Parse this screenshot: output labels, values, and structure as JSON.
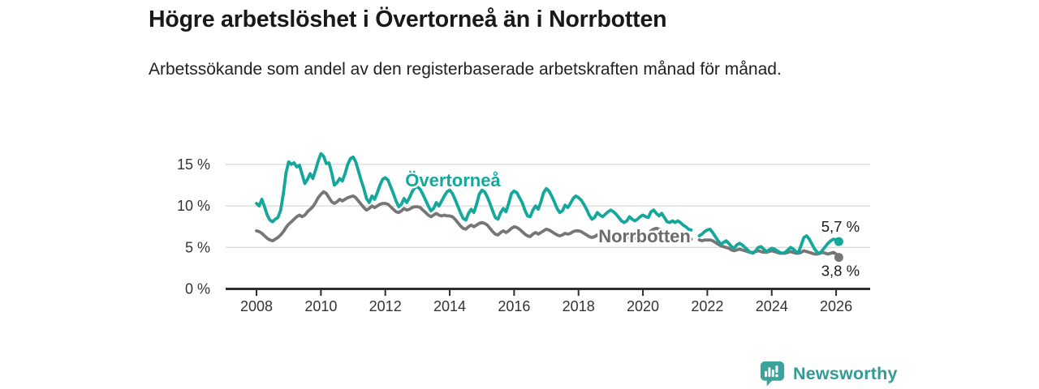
{
  "header": {
    "title": "Högre arbetslöshet i Övertorneå än i Norrbotten",
    "subtitle": "Arbetssökande som andel av den registerbaserade arbetskraften månad för månad."
  },
  "footer": {
    "brand": "Newsworthy"
  },
  "colors": {
    "background": "#ffffff",
    "accent_teal": "#14a79b",
    "line_gray": "#767676",
    "label_gray": "#6b6b6b",
    "grid": "#d9d9d9",
    "axis": "#2e2e2e",
    "tick_label": "#333333",
    "value_label": "#1a1a1a",
    "brand": "#339b95"
  },
  "chart_data": {
    "type": "line",
    "title": "Högre arbetslöshet i Övertorneå än i Norrbotten",
    "subtitle": "Arbetssökande som andel av den registerbaserade arbetskraften månad för månad.",
    "xlabel": "",
    "ylabel": "",
    "grid": true,
    "legend_position": "inline-labels",
    "x_unit": "monthly_decimal_year",
    "x_start": 2008.0,
    "x_end": 2026.083,
    "ylim": [
      0,
      17
    ],
    "xticks": [
      {
        "year": 2008,
        "label": "2008"
      },
      {
        "year": 2010,
        "label": "2010"
      },
      {
        "year": 2012,
        "label": "2012"
      },
      {
        "year": 2014,
        "label": "2014"
      },
      {
        "year": 2016,
        "label": "2016"
      },
      {
        "year": 2018,
        "label": "2018"
      },
      {
        "year": 2020,
        "label": "2020"
      },
      {
        "year": 2022,
        "label": "2022"
      },
      {
        "year": 2024,
        "label": "2024"
      },
      {
        "year": 2026,
        "label": "2026"
      }
    ],
    "yticks": [
      {
        "value": 0,
        "label": "0 %"
      },
      {
        "value": 5,
        "label": "5 %"
      },
      {
        "value": 10,
        "label": "10 %"
      },
      {
        "value": 15,
        "label": "15 %"
      }
    ],
    "series": [
      {
        "name": "Övertorneå",
        "slug": "overtornea",
        "color": "#14a79b",
        "label_color": "#14a79b",
        "label_anchor": {
          "x": 2014.1,
          "y": 13.15
        },
        "end_label": "5,7 %",
        "end_label_placement": "above",
        "end_value": 5.7,
        "values": [
          10.3,
          10.0,
          10.8,
          9.9,
          8.9,
          8.3,
          8.1,
          8.4,
          8.6,
          9.5,
          11.5,
          14.0,
          15.3,
          15.0,
          15.2,
          14.7,
          14.9,
          13.8,
          12.7,
          13.2,
          13.9,
          13.3,
          14.3,
          15.4,
          16.3,
          16.0,
          15.1,
          15.2,
          14.0,
          12.5,
          12.8,
          13.3,
          13.0,
          13.9,
          15.0,
          15.7,
          15.9,
          15.3,
          14.2,
          13.1,
          12.1,
          10.9,
          10.4,
          11.2,
          10.8,
          11.6,
          12.5,
          13.2,
          13.4,
          13.1,
          12.3,
          11.5,
          10.6,
          9.9,
          10.2,
          10.9,
          10.4,
          11.0,
          11.7,
          12.2,
          12.3,
          12.0,
          11.4,
          10.7,
          10.0,
          9.4,
          9.7,
          10.4,
          10.0,
          10.6,
          11.2,
          11.7,
          11.9,
          11.5,
          10.8,
          10.0,
          9.2,
          8.5,
          8.3,
          9.1,
          9.6,
          9.2,
          10.2,
          11.4,
          11.9,
          11.7,
          11.1,
          10.3,
          9.4,
          8.6,
          8.4,
          9.2,
          9.7,
          9.3,
          10.3,
          11.5,
          11.8,
          11.6,
          11.0,
          10.4,
          9.5,
          8.8,
          8.7,
          9.5,
          10.0,
          9.6,
          10.5,
          11.6,
          12.1,
          11.8,
          11.2,
          10.5,
          9.7,
          9.2,
          9.4,
          10.1,
          9.8,
          10.3,
          10.9,
          11.2,
          11.0,
          10.7,
          10.2,
          9.6,
          8.9,
          8.4,
          8.6,
          9.2,
          8.9,
          8.7,
          9.0,
          9.3,
          9.5,
          9.3,
          9.0,
          8.6,
          8.2,
          8.0,
          8.2,
          8.7,
          8.4,
          8.2,
          8.4,
          8.7,
          8.9,
          8.7,
          8.6,
          9.3,
          9.5,
          9.1,
          8.8,
          9.1,
          8.6,
          8.1,
          8.0,
          8.2,
          8.0,
          8.2,
          8.0,
          7.7,
          7.5,
          7.2,
          7.1,
          null,
          null,
          6.4,
          6.6,
          6.9,
          7.1,
          7.2,
          6.8,
          6.3,
          5.8,
          5.4,
          5.6,
          5.8,
          5.5,
          5.1,
          4.9,
          5.3,
          5.5,
          5.3,
          5.0,
          4.7,
          4.4,
          4.3,
          4.6,
          5.0,
          5.1,
          4.8,
          4.5,
          4.7,
          4.9,
          4.8,
          4.6,
          4.4,
          4.3,
          4.4,
          4.7,
          5.0,
          4.8,
          4.5,
          4.4,
          5.3,
          6.2,
          6.4,
          6.0,
          5.4,
          4.8,
          4.4,
          4.3,
          4.7,
          5.1,
          5.5,
          5.8,
          6.0,
          5.9,
          5.7
        ]
      },
      {
        "name": "Norrbotten",
        "slug": "norrbotten",
        "color": "#767676",
        "label_color": "#6b6b6b",
        "label_anchor": {
          "x": 2020.05,
          "y": 6.4
        },
        "end_label": "3,8 %",
        "end_label_placement": "below",
        "end_value": 3.8,
        "values": [
          7.0,
          6.9,
          6.7,
          6.4,
          6.1,
          5.9,
          5.8,
          6.0,
          6.2,
          6.5,
          6.9,
          7.4,
          7.8,
          8.1,
          8.4,
          8.7,
          8.9,
          8.7,
          8.9,
          9.3,
          9.6,
          9.9,
          10.4,
          11.0,
          11.4,
          11.7,
          11.5,
          11.0,
          10.5,
          10.3,
          10.5,
          10.8,
          10.6,
          10.8,
          11.0,
          11.1,
          11.2,
          11.0,
          10.6,
          10.2,
          9.8,
          9.5,
          9.7,
          10.0,
          9.8,
          10.0,
          10.2,
          10.3,
          10.3,
          10.2,
          9.9,
          9.6,
          9.3,
          9.2,
          9.4,
          9.7,
          9.5,
          9.6,
          9.8,
          9.9,
          9.9,
          9.8,
          9.5,
          9.2,
          8.9,
          8.7,
          8.9,
          9.1,
          8.9,
          8.8,
          8.9,
          8.8,
          8.8,
          8.7,
          8.4,
          8.0,
          7.6,
          7.3,
          7.2,
          7.5,
          7.7,
          7.5,
          7.7,
          7.9,
          8.0,
          7.9,
          7.7,
          7.3,
          6.9,
          6.6,
          6.5,
          6.8,
          7.0,
          6.8,
          7.0,
          7.3,
          7.5,
          7.4,
          7.2,
          6.9,
          6.6,
          6.4,
          6.3,
          6.6,
          6.8,
          6.6,
          6.8,
          7.0,
          7.2,
          7.1,
          6.9,
          6.7,
          6.5,
          6.4,
          6.5,
          6.7,
          6.6,
          6.7,
          6.9,
          7.0,
          7.0,
          6.9,
          6.7,
          6.5,
          6.3,
          6.2,
          6.3,
          6.5,
          6.4,
          6.3,
          6.4,
          6.5,
          6.6,
          6.5,
          6.4,
          6.3,
          6.1,
          6.0,
          6.1,
          6.3,
          6.2,
          6.1,
          6.2,
          6.4,
          6.5,
          6.4,
          6.5,
          7.0,
          7.2,
          7.3,
          7.2,
          7.1,
          6.9,
          6.7,
          6.6,
          6.7,
          6.8,
          6.7,
          6.6,
          6.4,
          6.2,
          6.1,
          6.0,
          null,
          null,
          5.9,
          5.8,
          5.9,
          5.9,
          5.9,
          5.8,
          5.6,
          5.4,
          5.2,
          5.1,
          5.0,
          4.9,
          4.7,
          4.6,
          4.7,
          4.8,
          4.7,
          4.6,
          4.5,
          4.4,
          4.4,
          4.5,
          4.6,
          4.5,
          4.4,
          4.4,
          4.5,
          4.6,
          4.5,
          4.4,
          4.3,
          4.3,
          4.3,
          4.4,
          4.5,
          4.4,
          4.3,
          4.3,
          4.4,
          4.6,
          4.5,
          4.4,
          4.3,
          4.2,
          4.2,
          4.3,
          4.4,
          4.3,
          4.2,
          4.3,
          4.4,
          4.2,
          3.8
        ]
      }
    ]
  }
}
